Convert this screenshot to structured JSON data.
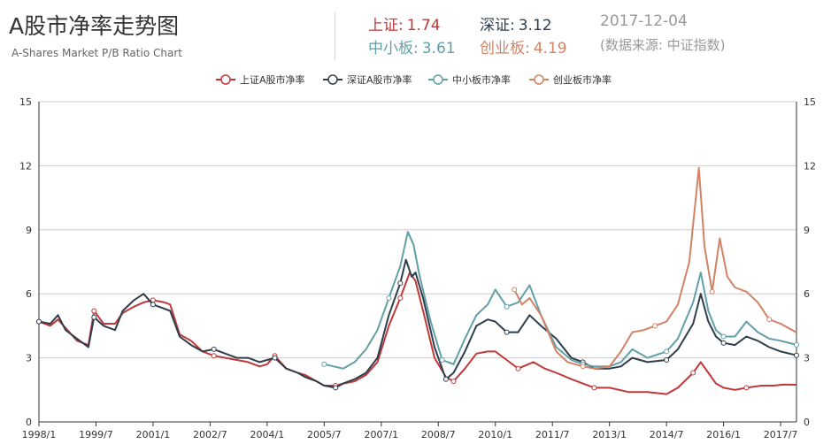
{
  "header": {
    "title": "A股市净率走势图",
    "subtitle": "A-Shares Market P/B Ratio Chart",
    "date": "2017-12-04",
    "source": "(数据来源: 中证指数)",
    "stats": [
      {
        "label": "上证:",
        "value": "1.74",
        "color": "#c0383a"
      },
      {
        "label": "深证:",
        "value": "3.12",
        "color": "#2f3e4c"
      },
      {
        "label": "中小板:",
        "value": "3.61",
        "color": "#61a0a8"
      },
      {
        "label": "创业板:",
        "value": "4.19",
        "color": "#d48265"
      }
    ]
  },
  "chart_data": {
    "type": "line",
    "title": "",
    "xlabel": "",
    "ylabel": "",
    "ylim": [
      0,
      15
    ],
    "yticks": [
      0,
      3,
      6,
      9,
      12,
      15
    ],
    "xlim": [
      1998.0,
      2017.917
    ],
    "xticks": [
      {
        "x": 1998.0,
        "label": "1998/1"
      },
      {
        "x": 1999.5,
        "label": "1999/7"
      },
      {
        "x": 2001.0,
        "label": "2001/1"
      },
      {
        "x": 2002.5,
        "label": "2002/7"
      },
      {
        "x": 2004.0,
        "label": "2004/1"
      },
      {
        "x": 2005.5,
        "label": "2005/7"
      },
      {
        "x": 2007.0,
        "label": "2007/1"
      },
      {
        "x": 2008.5,
        "label": "2008/7"
      },
      {
        "x": 2010.0,
        "label": "2010/1"
      },
      {
        "x": 2011.5,
        "label": "2011/7"
      },
      {
        "x": 2013.0,
        "label": "2013/1"
      },
      {
        "x": 2014.5,
        "label": "2014/7"
      },
      {
        "x": 2016.0,
        "label": "2016/1"
      },
      {
        "x": 2017.5,
        "label": "2017/7"
      }
    ],
    "grid": true,
    "legend_position": "top-center",
    "series": [
      {
        "name": "上证A股市净率",
        "color": "#c0383a",
        "points": [
          [
            1998.0,
            4.7
          ],
          [
            1998.3,
            4.5
          ],
          [
            1998.5,
            4.8
          ],
          [
            1998.7,
            4.4
          ],
          [
            1999.0,
            3.8
          ],
          [
            1999.3,
            3.6
          ],
          [
            1999.45,
            5.2
          ],
          [
            1999.7,
            4.6
          ],
          [
            2000.0,
            4.6
          ],
          [
            2000.2,
            5.1
          ],
          [
            2000.5,
            5.4
          ],
          [
            2000.75,
            5.6
          ],
          [
            2001.0,
            5.7
          ],
          [
            2001.3,
            5.6
          ],
          [
            2001.45,
            5.5
          ],
          [
            2001.7,
            4.1
          ],
          [
            2002.0,
            3.8
          ],
          [
            2002.3,
            3.3
          ],
          [
            2002.6,
            3.1
          ],
          [
            2002.9,
            3.0
          ],
          [
            2003.2,
            2.9
          ],
          [
            2003.5,
            2.8
          ],
          [
            2003.8,
            2.6
          ],
          [
            2004.0,
            2.7
          ],
          [
            2004.2,
            3.1
          ],
          [
            2004.5,
            2.5
          ],
          [
            2004.8,
            2.3
          ],
          [
            2005.0,
            2.2
          ],
          [
            2005.3,
            1.9
          ],
          [
            2005.5,
            1.7
          ],
          [
            2005.8,
            1.7
          ],
          [
            2006.0,
            1.8
          ],
          [
            2006.3,
            1.9
          ],
          [
            2006.6,
            2.2
          ],
          [
            2006.9,
            2.8
          ],
          [
            2007.2,
            4.5
          ],
          [
            2007.5,
            5.8
          ],
          [
            2007.75,
            7.0
          ],
          [
            2007.9,
            6.6
          ],
          [
            2008.1,
            5.2
          ],
          [
            2008.4,
            3.0
          ],
          [
            2008.7,
            2.1
          ],
          [
            2008.9,
            1.9
          ],
          [
            2009.2,
            2.5
          ],
          [
            2009.5,
            3.2
          ],
          [
            2009.8,
            3.3
          ],
          [
            2010.0,
            3.3
          ],
          [
            2010.3,
            2.9
          ],
          [
            2010.6,
            2.5
          ],
          [
            2011.0,
            2.8
          ],
          [
            2011.3,
            2.5
          ],
          [
            2011.6,
            2.3
          ],
          [
            2012.0,
            2.0
          ],
          [
            2012.3,
            1.8
          ],
          [
            2012.6,
            1.6
          ],
          [
            2013.0,
            1.6
          ],
          [
            2013.5,
            1.4
          ],
          [
            2014.0,
            1.4
          ],
          [
            2014.5,
            1.3
          ],
          [
            2014.8,
            1.6
          ],
          [
            2015.2,
            2.3
          ],
          [
            2015.4,
            2.8
          ],
          [
            2015.6,
            2.3
          ],
          [
            2015.8,
            1.8
          ],
          [
            2016.0,
            1.6
          ],
          [
            2016.3,
            1.5
          ],
          [
            2016.6,
            1.6
          ],
          [
            2017.0,
            1.7
          ],
          [
            2017.3,
            1.7
          ],
          [
            2017.6,
            1.75
          ],
          [
            2017.917,
            1.74
          ]
        ]
      },
      {
        "name": "深证A股市净率",
        "color": "#2f3e4c",
        "points": [
          [
            1998.0,
            4.7
          ],
          [
            1998.3,
            4.6
          ],
          [
            1998.5,
            5.0
          ],
          [
            1998.7,
            4.3
          ],
          [
            1999.0,
            3.9
          ],
          [
            1999.3,
            3.5
          ],
          [
            1999.45,
            4.9
          ],
          [
            1999.7,
            4.5
          ],
          [
            2000.0,
            4.3
          ],
          [
            2000.2,
            5.2
          ],
          [
            2000.5,
            5.7
          ],
          [
            2000.75,
            6.0
          ],
          [
            2001.0,
            5.5
          ],
          [
            2001.3,
            5.3
          ],
          [
            2001.45,
            5.2
          ],
          [
            2001.7,
            4.0
          ],
          [
            2002.0,
            3.6
          ],
          [
            2002.3,
            3.3
          ],
          [
            2002.6,
            3.4
          ],
          [
            2002.9,
            3.2
          ],
          [
            2003.2,
            3.0
          ],
          [
            2003.5,
            3.0
          ],
          [
            2003.8,
            2.8
          ],
          [
            2004.0,
            2.9
          ],
          [
            2004.2,
            3.0
          ],
          [
            2004.5,
            2.5
          ],
          [
            2004.8,
            2.3
          ],
          [
            2005.0,
            2.1
          ],
          [
            2005.3,
            1.9
          ],
          [
            2005.5,
            1.7
          ],
          [
            2005.8,
            1.6
          ],
          [
            2006.0,
            1.8
          ],
          [
            2006.3,
            2.0
          ],
          [
            2006.6,
            2.3
          ],
          [
            2006.9,
            3.0
          ],
          [
            2007.2,
            5.0
          ],
          [
            2007.5,
            6.5
          ],
          [
            2007.65,
            7.6
          ],
          [
            2007.8,
            6.8
          ],
          [
            2007.9,
            7.0
          ],
          [
            2008.1,
            5.8
          ],
          [
            2008.4,
            3.5
          ],
          [
            2008.7,
            2.0
          ],
          [
            2008.9,
            2.3
          ],
          [
            2009.2,
            3.3
          ],
          [
            2009.5,
            4.5
          ],
          [
            2009.8,
            4.8
          ],
          [
            2010.0,
            4.7
          ],
          [
            2010.3,
            4.2
          ],
          [
            2010.6,
            4.2
          ],
          [
            2010.9,
            5.0
          ],
          [
            2011.2,
            4.5
          ],
          [
            2011.6,
            3.9
          ],
          [
            2012.0,
            3.0
          ],
          [
            2012.3,
            2.8
          ],
          [
            2012.6,
            2.5
          ],
          [
            2013.0,
            2.5
          ],
          [
            2013.3,
            2.6
          ],
          [
            2013.6,
            3.0
          ],
          [
            2014.0,
            2.8
          ],
          [
            2014.5,
            2.9
          ],
          [
            2014.8,
            3.4
          ],
          [
            2015.2,
            4.6
          ],
          [
            2015.4,
            6.0
          ],
          [
            2015.6,
            4.7
          ],
          [
            2015.8,
            4.0
          ],
          [
            2016.0,
            3.7
          ],
          [
            2016.3,
            3.6
          ],
          [
            2016.6,
            4.0
          ],
          [
            2016.9,
            3.8
          ],
          [
            2017.2,
            3.5
          ],
          [
            2017.5,
            3.3
          ],
          [
            2017.917,
            3.12
          ]
        ]
      },
      {
        "name": "中小板市净率",
        "color": "#61a0a8",
        "points": [
          [
            2005.5,
            2.7
          ],
          [
            2005.75,
            2.6
          ],
          [
            2006.0,
            2.5
          ],
          [
            2006.3,
            2.8
          ],
          [
            2006.6,
            3.4
          ],
          [
            2006.9,
            4.3
          ],
          [
            2007.2,
            5.8
          ],
          [
            2007.5,
            7.3
          ],
          [
            2007.7,
            8.9
          ],
          [
            2007.85,
            8.3
          ],
          [
            2008.0,
            6.9
          ],
          [
            2008.3,
            4.7
          ],
          [
            2008.6,
            2.9
          ],
          [
            2008.9,
            2.7
          ],
          [
            2009.2,
            3.9
          ],
          [
            2009.5,
            5.0
          ],
          [
            2009.8,
            5.5
          ],
          [
            2010.0,
            6.2
          ],
          [
            2010.3,
            5.4
          ],
          [
            2010.6,
            5.6
          ],
          [
            2010.9,
            6.4
          ],
          [
            2011.2,
            5.0
          ],
          [
            2011.6,
            3.5
          ],
          [
            2012.0,
            2.9
          ],
          [
            2012.3,
            2.7
          ],
          [
            2012.6,
            2.6
          ],
          [
            2013.0,
            2.6
          ],
          [
            2013.3,
            2.8
          ],
          [
            2013.6,
            3.4
          ],
          [
            2014.0,
            3.0
          ],
          [
            2014.5,
            3.3
          ],
          [
            2014.8,
            3.9
          ],
          [
            2015.2,
            5.6
          ],
          [
            2015.4,
            7.0
          ],
          [
            2015.6,
            5.2
          ],
          [
            2015.8,
            4.3
          ],
          [
            2016.0,
            4.0
          ],
          [
            2016.3,
            4.0
          ],
          [
            2016.6,
            4.7
          ],
          [
            2016.9,
            4.2
          ],
          [
            2017.2,
            3.9
          ],
          [
            2017.5,
            3.8
          ],
          [
            2017.917,
            3.61
          ]
        ]
      },
      {
        "name": "创业板市净率",
        "color": "#d48265",
        "points": [
          [
            2010.5,
            6.2
          ],
          [
            2010.7,
            5.5
          ],
          [
            2010.9,
            5.8
          ],
          [
            2011.2,
            5.0
          ],
          [
            2011.6,
            3.3
          ],
          [
            2011.9,
            2.8
          ],
          [
            2012.3,
            2.6
          ],
          [
            2012.6,
            2.5
          ],
          [
            2013.0,
            2.6
          ],
          [
            2013.3,
            3.3
          ],
          [
            2013.6,
            4.2
          ],
          [
            2013.9,
            4.3
          ],
          [
            2014.2,
            4.5
          ],
          [
            2014.5,
            4.7
          ],
          [
            2014.8,
            5.5
          ],
          [
            2015.1,
            7.5
          ],
          [
            2015.35,
            11.9
          ],
          [
            2015.5,
            8.2
          ],
          [
            2015.7,
            6.1
          ],
          [
            2015.9,
            8.6
          ],
          [
            2016.1,
            6.8
          ],
          [
            2016.3,
            6.3
          ],
          [
            2016.6,
            6.1
          ],
          [
            2016.9,
            5.6
          ],
          [
            2017.2,
            4.8
          ],
          [
            2017.5,
            4.6
          ],
          [
            2017.917,
            4.19
          ]
        ]
      }
    ]
  }
}
